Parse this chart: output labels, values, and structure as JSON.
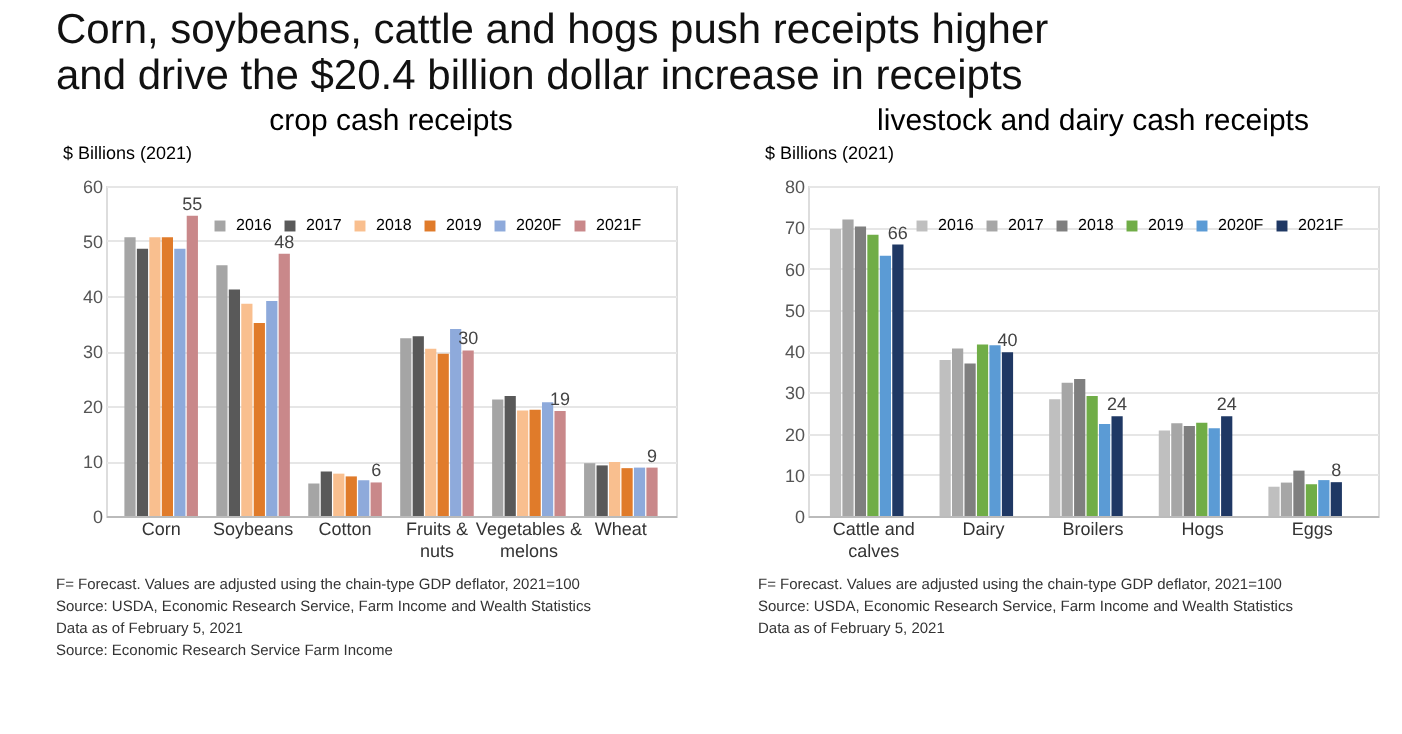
{
  "chart_data": [
    {
      "type": "bar",
      "title": "Corn, soybeans, cattle and hogs push receipts higher and drive the $20.4 billion dollar increase in receipts",
      "subtitle": "crop cash receipts",
      "ylabel": "$ Billions (2021)",
      "categories": [
        "Corn",
        "Soybeans",
        "Cotton",
        "Fruits & nuts",
        "Vegetables & melons",
        "Wheat"
      ],
      "series": [
        {
          "name": "2016",
          "color": "#a5a5a5",
          "values": [
            50.7,
            45.6,
            5.9,
            32.3,
            21.2,
            9.6
          ]
        },
        {
          "name": "2017",
          "color": "#595959",
          "values": [
            48.6,
            41.2,
            8.1,
            32.7,
            21.8,
            9.2
          ]
        },
        {
          "name": "2018",
          "color": "#f9bf8f",
          "values": [
            50.7,
            38.6,
            7.7,
            30.4,
            19.2,
            9.8
          ]
        },
        {
          "name": "2019",
          "color": "#e07b2a",
          "values": [
            50.7,
            35.1,
            7.2,
            29.5,
            19.3,
            8.7
          ]
        },
        {
          "name": "2020F",
          "color": "#8eaadb",
          "values": [
            48.6,
            39.1,
            6.5,
            34.0,
            20.7,
            8.8
          ]
        },
        {
          "name": "2021F",
          "color": "#c9888a",
          "values": [
            54.6,
            47.7,
            6.1,
            30.1,
            19.1,
            8.8
          ],
          "value_labels": [
            "55",
            "48",
            "6",
            "30",
            "19",
            "9"
          ]
        }
      ],
      "ylim": [
        0,
        60
      ],
      "yticks": [
        0,
        10,
        20,
        30,
        40,
        50,
        60
      ],
      "grid": "y",
      "legend": "top right",
      "annotations": [
        "F= Forecast.  Values are adjusted using the chain-type GDP deflator, 2021=100",
        "Source: USDA, Economic Research Service, Farm Income and Wealth Statistics",
        "Data as of February 5, 2021",
        "Source: Economic Research Service Farm Income"
      ]
    },
    {
      "type": "bar",
      "subtitle": "livestock and dairy cash receipts",
      "ylabel": "$ Billions (2021)",
      "categories": [
        "Cattle and calves",
        "Dairy",
        "Broilers",
        "Hogs",
        "Eggs"
      ],
      "series": [
        {
          "name": "2016",
          "color": "#bfbfbf",
          "values": [
            69.6,
            37.8,
            28.3,
            20.7,
            7.1
          ]
        },
        {
          "name": "2017",
          "color": "#a6a6a6",
          "values": [
            71.9,
            40.6,
            32.3,
            22.5,
            8.1
          ]
        },
        {
          "name": "2018",
          "color": "#7f7f7f",
          "values": [
            70.2,
            37.0,
            33.2,
            21.8,
            11.0
          ]
        },
        {
          "name": "2019",
          "color": "#70ad47",
          "values": [
            68.2,
            41.6,
            29.1,
            22.6,
            7.7
          ]
        },
        {
          "name": "2020F",
          "color": "#5b9bd5",
          "values": [
            63.1,
            41.4,
            22.3,
            21.3,
            8.7
          ]
        },
        {
          "name": "2021F",
          "color": "#1f3864",
          "values": [
            65.8,
            39.7,
            24.2,
            24.2,
            8.2
          ],
          "value_labels": [
            "66",
            "40",
            "24",
            "24",
            "8"
          ]
        }
      ],
      "ylim": [
        0,
        80
      ],
      "yticks": [
        0,
        10,
        20,
        30,
        40,
        50,
        60,
        70,
        80
      ],
      "grid": "y",
      "legend": "top right",
      "annotations": [
        "F= Forecast.  Values are adjusted using the chain-type GDP deflator, 2021=100",
        "Source: USDA, Economic Research Service, Farm Income and Wealth Statistics",
        "Data as of February 5, 2021"
      ]
    }
  ]
}
